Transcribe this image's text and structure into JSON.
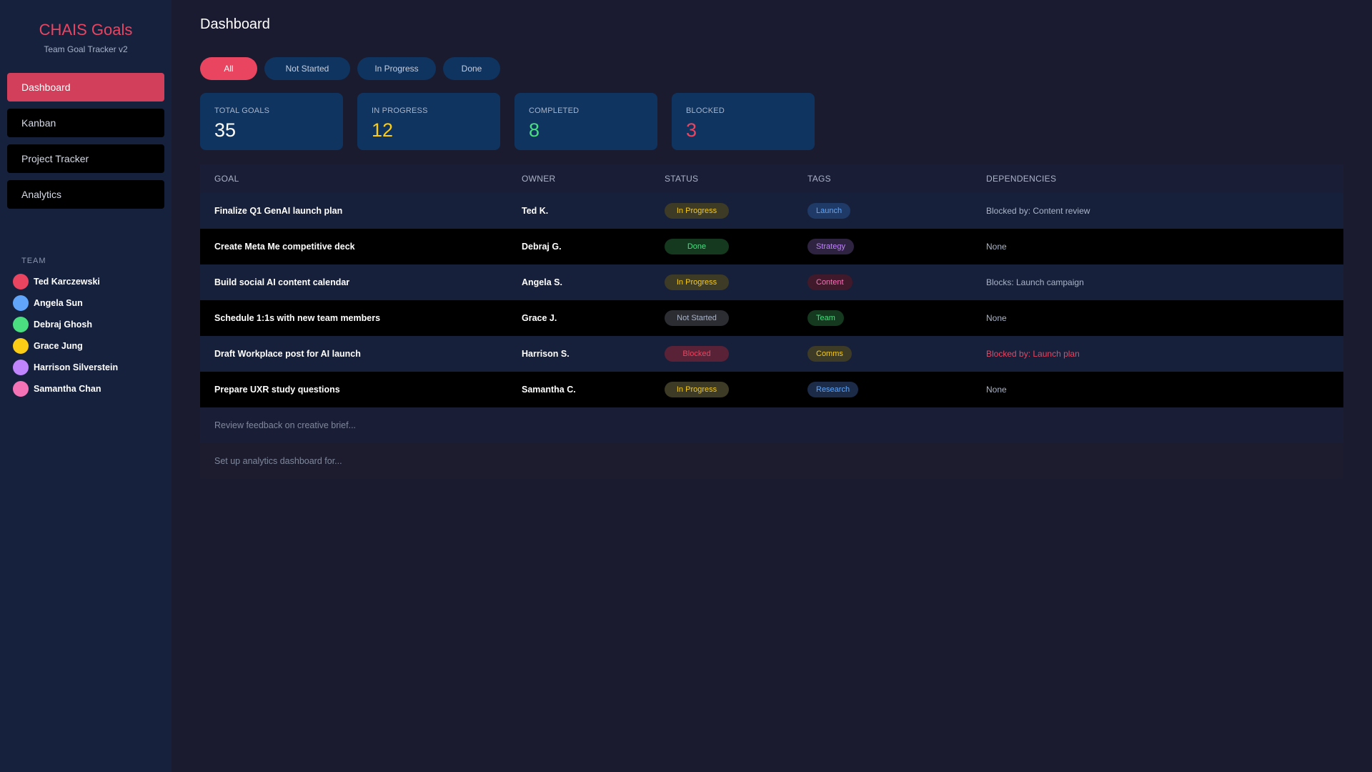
{
  "brand": {
    "title": "CHAIS Goals",
    "subtitle": "Team Goal Tracker v2"
  },
  "nav": [
    {
      "label": "Dashboard",
      "active": true
    },
    {
      "label": "Kanban",
      "active": false
    },
    {
      "label": "Project Tracker",
      "active": false
    },
    {
      "label": "Analytics",
      "active": false
    }
  ],
  "team": {
    "heading": "TEAM",
    "members": [
      {
        "name": "Ted Karczewski",
        "color": "#e94560"
      },
      {
        "name": "Angela Sun",
        "color": "#60a5fa"
      },
      {
        "name": "Debraj Ghosh",
        "color": "#4ade80"
      },
      {
        "name": "Grace Jung",
        "color": "#facc15"
      },
      {
        "name": "Harrison Silverstein",
        "color": "#c084fc"
      },
      {
        "name": "Samantha Chan",
        "color": "#f472b6"
      }
    ]
  },
  "page_title": "Dashboard",
  "filters": [
    {
      "label": "All",
      "active": true
    },
    {
      "label": "Not Started",
      "active": false
    },
    {
      "label": "In Progress",
      "active": false
    },
    {
      "label": "Done",
      "active": false
    }
  ],
  "stats": [
    {
      "label": "TOTAL GOALS",
      "value": "35",
      "color": "#ffffff"
    },
    {
      "label": "IN PROGRESS",
      "value": "12",
      "color": "#facc15"
    },
    {
      "label": "COMPLETED",
      "value": "8",
      "color": "#4ade80"
    },
    {
      "label": "BLOCKED",
      "value": "3",
      "color": "#e94560"
    }
  ],
  "table": {
    "headers": {
      "goal": "GOAL",
      "owner": "OWNER",
      "status": "STATUS",
      "tags": "TAGS",
      "deps": "DEPENDENCIES"
    },
    "rows": [
      {
        "goal": "Finalize Q1 GenAI launch plan",
        "owner": "Ted K.",
        "status": "In Progress",
        "tag": "Launch",
        "deps": "Blocked by: Content review",
        "deps_alert": false
      },
      {
        "goal": "Create Meta Me competitive deck",
        "owner": "Debraj G.",
        "status": "Done",
        "tag": "Strategy",
        "deps": "None",
        "deps_alert": false
      },
      {
        "goal": "Build social AI content calendar",
        "owner": "Angela S.",
        "status": "In Progress",
        "tag": "Content",
        "deps": "Blocks: Launch campaign",
        "deps_alert": false
      },
      {
        "goal": "Schedule 1:1s with new team members",
        "owner": "Grace J.",
        "status": "Not Started",
        "tag": "Team",
        "deps": "None",
        "deps_alert": false
      },
      {
        "goal": "Draft Workplace post for AI launch",
        "owner": "Harrison S.",
        "status": "Blocked",
        "tag": "Comms",
        "deps": "Blocked by: Launch plan",
        "deps_alert": true
      },
      {
        "goal": "Prepare UXR study questions",
        "owner": "Samantha C.",
        "status": "In Progress",
        "tag": "Research",
        "deps": "None",
        "deps_alert": false
      }
    ],
    "faded_rows": [
      {
        "goal": "Review feedback on creative brief..."
      },
      {
        "goal": "Set up analytics dashboard for..."
      }
    ]
  },
  "status_styles": {
    "In Progress": {
      "bg": "#3d3a26",
      "fg": "#facc15"
    },
    "Done": {
      "bg": "#14391f",
      "fg": "#4ade80"
    },
    "Not Started": {
      "bg": "#2c2d33",
      "fg": "#aab4c8"
    },
    "Blocked": {
      "bg": "#5a2236",
      "fg": "#e94560"
    }
  },
  "tag_styles": {
    "Launch": {
      "bg": "#1f3a66",
      "fg": "#60a5fa"
    },
    "Strategy": {
      "bg": "#2e2340",
      "fg": "#c084fc"
    },
    "Content": {
      "bg": "#40192a",
      "fg": "#f472b6"
    },
    "Team": {
      "bg": "#14391f",
      "fg": "#4ade80"
    },
    "Comms": {
      "bg": "#3d3a26",
      "fg": "#facc15"
    },
    "Research": {
      "bg": "#1c2c48",
      "fg": "#60a5fa"
    }
  }
}
